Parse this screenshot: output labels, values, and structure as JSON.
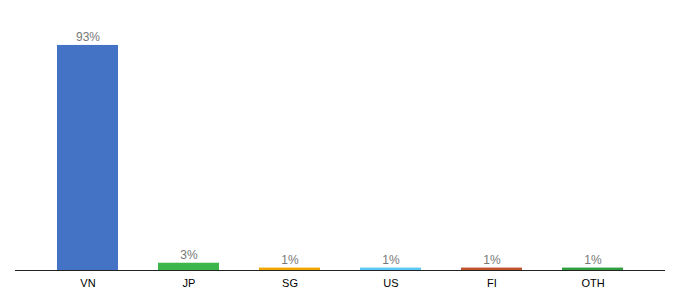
{
  "chart_data": {
    "type": "bar",
    "categories": [
      "VN",
      "JP",
      "SG",
      "US",
      "FI",
      "OTH"
    ],
    "values": [
      93,
      3,
      1,
      1,
      1,
      1
    ],
    "value_labels": [
      "93%",
      "3%",
      "1%",
      "1%",
      "1%",
      "1%"
    ],
    "colors": [
      "#4472c4",
      "#3cb54a",
      "#f0a500",
      "#5bc8f5",
      "#c0522b",
      "#2e9e3e"
    ],
    "ylim": [
      0,
      100
    ],
    "data_labels": true,
    "tick_labels": "x"
  }
}
